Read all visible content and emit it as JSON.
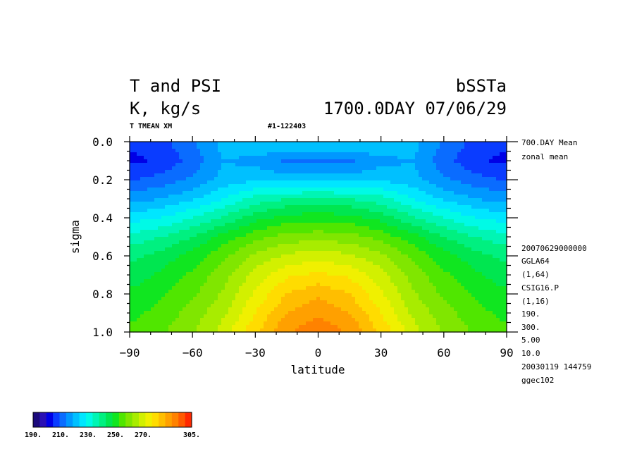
{
  "header": {
    "title_left_1": "T and PSI",
    "title_left_2": "K, kg/s",
    "title_right_1": "bSSTa",
    "title_right_2": "1700.0DAY 07/06/29",
    "subtitle_left": "T TMEAN XM",
    "subtitle_mid": "#1-122403"
  },
  "side_info": {
    "line1": "700.DAY Mean",
    "line2": "zonal mean",
    "meta": [
      "20070629000000",
      "GGLA64",
      "(1,64)",
      "CSIG16.P",
      "(1,16)",
      "190.",
      "300.",
      "5.00",
      "10.0",
      "20030119 144759",
      "ggec102"
    ]
  },
  "chart_data": {
    "type": "heatmap",
    "xlabel": "latitude",
    "ylabel": "sigma",
    "xlim": [
      -90,
      90
    ],
    "ylim": [
      0.0,
      1.0
    ],
    "y_inverted": true,
    "x_ticks": [
      "−90",
      "−60",
      "−30",
      "0",
      "30",
      "60",
      "90"
    ],
    "x_tick_values": [
      -90,
      -60,
      -30,
      0,
      30,
      60,
      90
    ],
    "y_ticks": [
      "0.0",
      "0.2",
      "0.4",
      "0.6",
      "0.8",
      "1.0"
    ],
    "y_tick_values": [
      0.0,
      0.2,
      0.4,
      0.6,
      0.8,
      1.0
    ],
    "contour_interval": 5,
    "latitudes": [
      -87,
      -75,
      -60,
      -45,
      -30,
      -15,
      0,
      15,
      30,
      45,
      60,
      75,
      87
    ],
    "sigma_levels": [
      0.02,
      0.1,
      0.2,
      0.3,
      0.4,
      0.5,
      0.6,
      0.7,
      0.8,
      0.9,
      0.98
    ],
    "values": [
      [
        206,
        208,
        214,
        222,
        225,
        224,
        224,
        224,
        225,
        222,
        214,
        208,
        206
      ],
      [
        204,
        206,
        212,
        220,
        218,
        214,
        213,
        214,
        218,
        220,
        212,
        206,
        204
      ],
      [
        210,
        212,
        216,
        222,
        224,
        223,
        223,
        223,
        224,
        222,
        216,
        212,
        210
      ],
      [
        218,
        220,
        224,
        230,
        237,
        240,
        241,
        240,
        237,
        230,
        224,
        220,
        218
      ],
      [
        228,
        230,
        235,
        241,
        248,
        252,
        253,
        252,
        248,
        241,
        235,
        230,
        228
      ],
      [
        237,
        240,
        245,
        252,
        258,
        262,
        263,
        262,
        258,
        252,
        245,
        240,
        237
      ],
      [
        244,
        247,
        252,
        259,
        266,
        271,
        273,
        271,
        266,
        259,
        252,
        247,
        244
      ],
      [
        248,
        251,
        256,
        263,
        272,
        279,
        281,
        279,
        272,
        263,
        256,
        251,
        248
      ],
      [
        251,
        254,
        259,
        266,
        276,
        285,
        289,
        285,
        276,
        266,
        259,
        254,
        251
      ],
      [
        254,
        257,
        262,
        269,
        280,
        290,
        294,
        290,
        280,
        269,
        262,
        257,
        254
      ],
      [
        256,
        259,
        264,
        272,
        283,
        294,
        298,
        294,
        283,
        272,
        264,
        259,
        256
      ]
    ],
    "colorbar": {
      "min": 190,
      "max": 305,
      "step": 5,
      "labels": [
        "190.",
        "210.",
        "230.",
        "250.",
        "270.",
        "305."
      ],
      "colors": [
        "#1c0a7c",
        "#2a10b4",
        "#0000e6",
        "#0a3cff",
        "#0a6cff",
        "#0098ff",
        "#00c0ff",
        "#00e6ff",
        "#00fae6",
        "#00f5b4",
        "#00f080",
        "#00e650",
        "#10e620",
        "#50e600",
        "#80e600",
        "#a8ec00",
        "#d2f000",
        "#f0f000",
        "#ffdc00",
        "#ffbe00",
        "#ffa000",
        "#ff8200",
        "#ff5a00",
        "#ff2800"
      ]
    }
  }
}
